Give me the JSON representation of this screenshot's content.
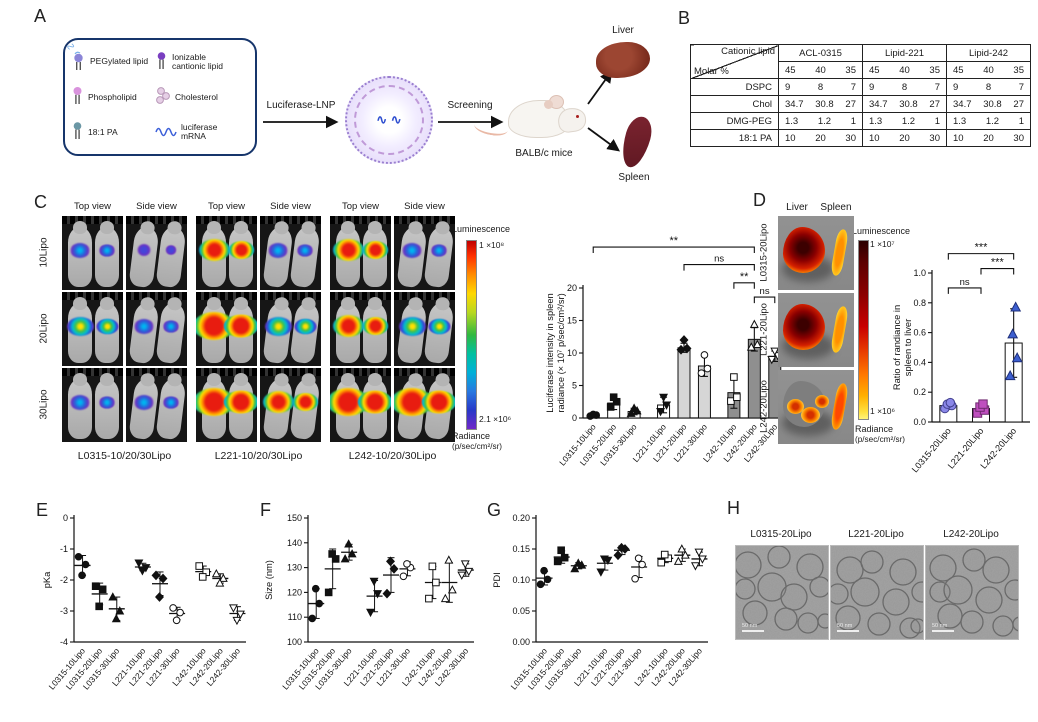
{
  "panelA": {
    "label": "A",
    "legend": {
      "items": [
        {
          "name": "pegylated-lipid",
          "label": "PEGylated lipid",
          "color": "#8b85d7"
        },
        {
          "name": "ionizable-cationic-lipid",
          "label": "Ionizable cantionic lipid",
          "color": "#7a3fc1"
        },
        {
          "name": "phospholipid",
          "label": "Phospholipid",
          "color": "#d993dd"
        },
        {
          "name": "cholesterol",
          "label": "Cholesterol",
          "color": "#dcc0dc"
        },
        {
          "name": "18-1-pa",
          "label": "18:1 PA",
          "color": "#6b97a5"
        },
        {
          "name": "luciferase-mrna",
          "label": "luciferase mRNA",
          "color": "#3b5fd9"
        }
      ]
    },
    "arrow1_label": "Luciferase-LNP",
    "arrow2_label": "Screening",
    "mouse_label": "BALB/c mice",
    "liver_label": "Liver",
    "spleen_label": "Spleen"
  },
  "panelB": {
    "label": "B",
    "table": {
      "corner_top": "Cationic lipid",
      "corner_bottom": "Molar %",
      "groups": [
        "ACL-0315",
        "Lipid-221",
        "Lipid-242"
      ],
      "molar_cols": [
        "45",
        "40",
        "35"
      ],
      "rows": [
        {
          "name": "DSPC",
          "values": [
            [
              "9",
              "8",
              "7"
            ],
            [
              "9",
              "8",
              "7"
            ],
            [
              "9",
              "8",
              "7"
            ]
          ]
        },
        {
          "name": "Chol",
          "values": [
            [
              "34.7",
              "30.8",
              "27"
            ],
            [
              "34.7",
              "30.8",
              "27"
            ],
            [
              "34.7",
              "30.8",
              "27"
            ]
          ]
        },
        {
          "name": "DMG-PEG",
          "values": [
            [
              "1.3",
              "1.2",
              "1"
            ],
            [
              "1.3",
              "1.2",
              "1"
            ],
            [
              "1.3",
              "1.2",
              "1"
            ]
          ]
        },
        {
          "name": "18:1 PA",
          "values": [
            [
              "10",
              "20",
              "30"
            ],
            [
              "10",
              "20",
              "30"
            ],
            [
              "10",
              "20",
              "30"
            ]
          ]
        }
      ]
    }
  },
  "panelC": {
    "label": "C",
    "view_headers": [
      "Top view",
      "Side view",
      "Top view",
      "Side view",
      "Top view",
      "Side view"
    ],
    "row_labels": [
      "10Lipo",
      "20Lipo",
      "30Lipo"
    ],
    "group_labels": [
      "L0315-10/20/30Lipo",
      "L221-10/20/30Lipo",
      "L242-10/20/30Lipo"
    ],
    "blob_levels": [
      [
        2,
        1,
        4,
        2,
        4,
        2
      ],
      [
        3,
        2,
        5,
        3,
        4,
        3
      ],
      [
        2,
        2,
        5,
        4,
        5,
        5
      ]
    ],
    "scale": {
      "title": "Luminescence",
      "max": "1 ×10⁸",
      "min": "2.1 ×10⁶",
      "radiance": "Radiance",
      "units": "(p/sec/cm²/sr)"
    }
  },
  "panelD": {
    "label": "D",
    "col_headers": [
      "Liver",
      "Spleen"
    ],
    "rows": [
      {
        "label": "L0315-20Lipo",
        "liver": "high",
        "spleen": "mid"
      },
      {
        "label": "L221-20Lipo",
        "liver": "high",
        "spleen": "mid"
      },
      {
        "label": "L242-20Lipo",
        "liver": "low",
        "spleen": "hot"
      }
    ],
    "scale": {
      "title": "Luminescence",
      "max": "1 ×10⁷",
      "min": "1 ×10⁶",
      "radiance": "Radiance",
      "units": "(p/sec/cm²/sr)"
    }
  },
  "panelE": {
    "label": "E"
  },
  "panelF": {
    "label": "F"
  },
  "panelG": {
    "label": "G"
  },
  "panelH": {
    "label": "H",
    "titles": [
      "L0315-20Lipo",
      "L221-20Lipo",
      "L242-20Lipo"
    ],
    "scale_bar": "50 nm"
  },
  "chart_data": [
    {
      "id": "chart-c",
      "type": "bar",
      "title": "Luciferase intensity in spleen",
      "ylabel": [
        "Luciferase intensity in spleen",
        "radiance (× 10⁷ p/sec/cm²/sr)"
      ],
      "ylim": [
        0,
        20
      ],
      "yticks": [
        0,
        5,
        10,
        15,
        20
      ],
      "categories": [
        "L0315-10Lipo",
        "L0315-20Lipo",
        "L0315-30Lipo",
        "L221-10Lipo",
        "L221-20Lipo",
        "L221-30Lipo",
        "L242-10Lipo",
        "L242-20Lipo",
        "L242-30Lipo"
      ],
      "values": [
        0.4,
        2.3,
        1.0,
        2.0,
        10.8,
        8.0,
        3.9,
        12.1,
        9.5
      ],
      "errors": [
        0.2,
        1.0,
        0.5,
        1.2,
        0.7,
        1.6,
        2.4,
        1.8,
        0.8
      ],
      "points": [
        [
          0.3,
          0.45,
          0.55
        ],
        [
          1.7,
          2.5,
          3.2
        ],
        [
          0.7,
          1.1,
          1.5
        ],
        [
          1.0,
          2.0,
          3.2
        ],
        [
          10.5,
          10.7,
          12.0
        ],
        [
          6.9,
          7.6,
          9.7
        ],
        [
          2.6,
          3.2,
          6.3
        ],
        [
          10.9,
          11.3,
          14.4
        ],
        [
          9.0,
          9.6,
          10.3
        ]
      ],
      "bar_fills": [
        "#ffffff",
        "#ffffff",
        "#ffffff",
        "#ffffff",
        "#d6d6d6",
        "#d6d6d6",
        "#8f8f8f",
        "#8f8f8f",
        "#8f8f8f"
      ],
      "markers": [
        "circle,f",
        "square,f",
        "triangle,f",
        "tridown,f",
        "diamond,f",
        "circle,o",
        "square,o",
        "triangle,o",
        "tridown,o"
      ],
      "brackets": [
        {
          "from": 0,
          "to": 7,
          "label": "**",
          "y": 26.3
        },
        {
          "from": 4,
          "to": 7,
          "label": "ns",
          "y": 23.6
        },
        {
          "from": 6,
          "to": 7,
          "label": "**",
          "y": 20.8
        },
        {
          "from": 7,
          "to": 8,
          "label": "ns",
          "y": 18.6
        }
      ]
    },
    {
      "id": "chart-d",
      "type": "bar",
      "title": "Ratio of radiance in spleen to liver",
      "ylabel": [
        "Ratio of randiance in",
        "spleen to liver"
      ],
      "ylim": [
        0,
        1.0
      ],
      "yticks": [
        "0.0",
        "0.2",
        "0.4",
        "0.6",
        "0.8",
        "1.0"
      ],
      "categories": [
        "L0315-20Lipo",
        "L221-20Lipo",
        "L242-20Lipo"
      ],
      "values": [
        0.11,
        0.09,
        0.53
      ],
      "errors": [
        0.025,
        0.03,
        0.23
      ],
      "points": [
        [
          0.09,
          0.11,
          0.12,
          0.13
        ],
        [
          0.06,
          0.08,
          0.1,
          0.12
        ],
        [
          0.31,
          0.43,
          0.59,
          0.77
        ]
      ],
      "bar_fills": [
        "#ffffff",
        "#ffffff",
        "#ffffff"
      ],
      "markers": [
        {
          "shape": "circle",
          "fill": "#8a87e8",
          "stroke": "#43418f"
        },
        {
          "shape": "square",
          "fill": "#bf4fbf",
          "stroke": "#6f2a6f"
        },
        {
          "shape": "triangle",
          "fill": "#3d5fd0",
          "stroke": "#1e2f7a"
        }
      ],
      "brackets": [
        {
          "from": 0,
          "to": 2,
          "label": "***",
          "y": 1.13
        },
        {
          "from": 1,
          "to": 2,
          "label": "***",
          "y": 1.03
        },
        {
          "from": 0,
          "to": 1,
          "label": "ns",
          "y": 0.9
        }
      ]
    },
    {
      "id": "chart-e",
      "type": "scatter",
      "title": "pKa",
      "ylabel": [
        "pKa"
      ],
      "ylim": [
        -4,
        0
      ],
      "yticks": [
        0,
        -1,
        -2,
        -3,
        -4
      ],
      "categories": [
        "L0315-10Lipo",
        "L0315-20Lipo",
        "L0315-30Lipo",
        "L221-10Lipo",
        "L221-20Lipo",
        "L221-30Lipo",
        "L242-10Lipo",
        "L242-20Lipo",
        "L242-30Lipo"
      ],
      "values": [
        -1.53,
        -2.45,
        -2.93,
        -1.58,
        -2.12,
        -3.08,
        -1.73,
        -1.95,
        -3.08
      ],
      "errors": [
        0.32,
        0.35,
        0.38,
        0.12,
        0.38,
        0.2,
        0.18,
        0.15,
        0.22
      ],
      "points": [
        [
          -1.25,
          -1.5,
          -1.85
        ],
        [
          -2.2,
          -2.3,
          -2.85
        ],
        [
          -2.55,
          -3.0,
          -3.25
        ],
        [
          -1.45,
          -1.6,
          -1.7
        ],
        [
          -1.85,
          -1.95,
          -2.55
        ],
        [
          -2.9,
          -3.05,
          -3.3
        ],
        [
          -1.55,
          -1.75,
          -1.9
        ],
        [
          -1.8,
          -1.95,
          -2.1
        ],
        [
          -2.9,
          -3.1,
          -3.3
        ]
      ],
      "markers": [
        "circle,f",
        "square,f",
        "triangle,f",
        "tridown,f",
        "diamond,f",
        "circle,o",
        "square,o",
        "triangle,o",
        "tridown,o"
      ]
    },
    {
      "id": "chart-f",
      "type": "scatter",
      "title": "Size (nm)",
      "ylabel": [
        "Size (nm)"
      ],
      "ylim": [
        100,
        150
      ],
      "yticks": [
        100,
        110,
        120,
        130,
        140,
        150
      ],
      "categories": [
        "L0315-10Lipo",
        "L0315-20Lipo",
        "L0315-30Lipo",
        "L221-10Lipo",
        "L221-20Lipo",
        "L221-30Lipo",
        "L242-10Lipo",
        "L242-20Lipo",
        "L242-30Lipo"
      ],
      "values": [
        115.5,
        129.5,
        136.2,
        118.5,
        127,
        129.5,
        124,
        124,
        129
      ],
      "errors": [
        6,
        8,
        3.2,
        6.3,
        7,
        2.8,
        6.5,
        8,
        2.5
      ],
      "points": [
        [
          109.5,
          115.5,
          121.5
        ],
        [
          120,
          133.5,
          135.5
        ],
        [
          133.5,
          135.5,
          139.5
        ],
        [
          112,
          119.5,
          124.5
        ],
        [
          119.5,
          129.5,
          132.5
        ],
        [
          126.5,
          130,
          131.5
        ],
        [
          117.5,
          124,
          130.5
        ],
        [
          117.5,
          121,
          133
        ],
        [
          127,
          128.5,
          131.5
        ]
      ],
      "markers": [
        "circle,f",
        "square,f",
        "triangle,f",
        "tridown,f",
        "diamond,f",
        "circle,o",
        "square,o",
        "triangle,o",
        "tridown,o"
      ]
    },
    {
      "id": "chart-g",
      "type": "scatter",
      "title": "PDI",
      "ylabel": [
        "PDI"
      ],
      "ylim": [
        0,
        0.2
      ],
      "yticks": [
        "0.00",
        "0.05",
        "0.10",
        "0.15",
        "0.20"
      ],
      "categories": [
        "L0315-10Lipo",
        "L0315-20Lipo",
        "L0315-30Lipo",
        "L221-10Lipo",
        "L221-20Lipo",
        "L221-30Lipo",
        "L242-10Lipo",
        "L242-20Lipo",
        "L242-30Lipo"
      ],
      "values": [
        0.103,
        0.137,
        0.123,
        0.127,
        0.148,
        0.121,
        0.135,
        0.14,
        0.134
      ],
      "errors": [
        0.011,
        0.01,
        0.005,
        0.011,
        0.007,
        0.017,
        0.007,
        0.01,
        0.011
      ],
      "points": [
        [
          0.093,
          0.101,
          0.115
        ],
        [
          0.13,
          0.136,
          0.148
        ],
        [
          0.118,
          0.124,
          0.127
        ],
        [
          0.113,
          0.132,
          0.134
        ],
        [
          0.14,
          0.15,
          0.152
        ],
        [
          0.102,
          0.125,
          0.135
        ],
        [
          0.128,
          0.135,
          0.141
        ],
        [
          0.13,
          0.14,
          0.15
        ],
        [
          0.123,
          0.134,
          0.145
        ]
      ],
      "markers": [
        "circle,f",
        "square,f",
        "triangle,f",
        "tridown,f",
        "diamond,f",
        "circle,o",
        "square,o",
        "triangle,o",
        "tridown,o"
      ]
    }
  ]
}
